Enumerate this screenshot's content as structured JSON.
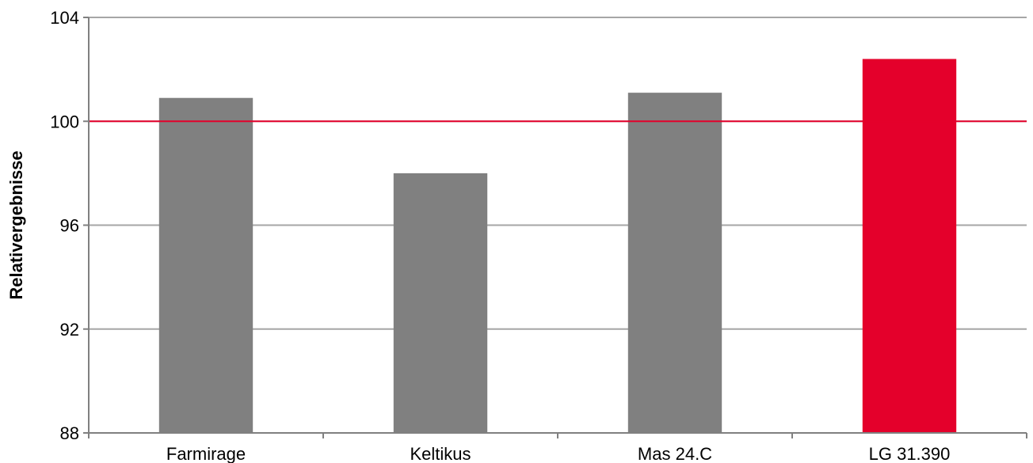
{
  "chart_data": {
    "type": "bar",
    "title": "",
    "xlabel": "",
    "ylabel": "Relativergebnisse",
    "categories": [
      "Farmirage",
      "Keltikus",
      "Mas 24.C",
      "LG 31.390"
    ],
    "values": [
      100.9,
      98.0,
      101.1,
      102.4
    ],
    "ylim": [
      88,
      104
    ],
    "yticks": [
      88,
      92,
      96,
      100,
      104
    ],
    "reference_line": 100,
    "grid": true,
    "legend": "none",
    "colors": {
      "default_bar": "#808080",
      "highlight_bar": "#e4002b",
      "reference_line": "#e4002b",
      "grid": "#a6a6a6",
      "axis": "#808080"
    },
    "highlight_category": "LG 31.390"
  }
}
